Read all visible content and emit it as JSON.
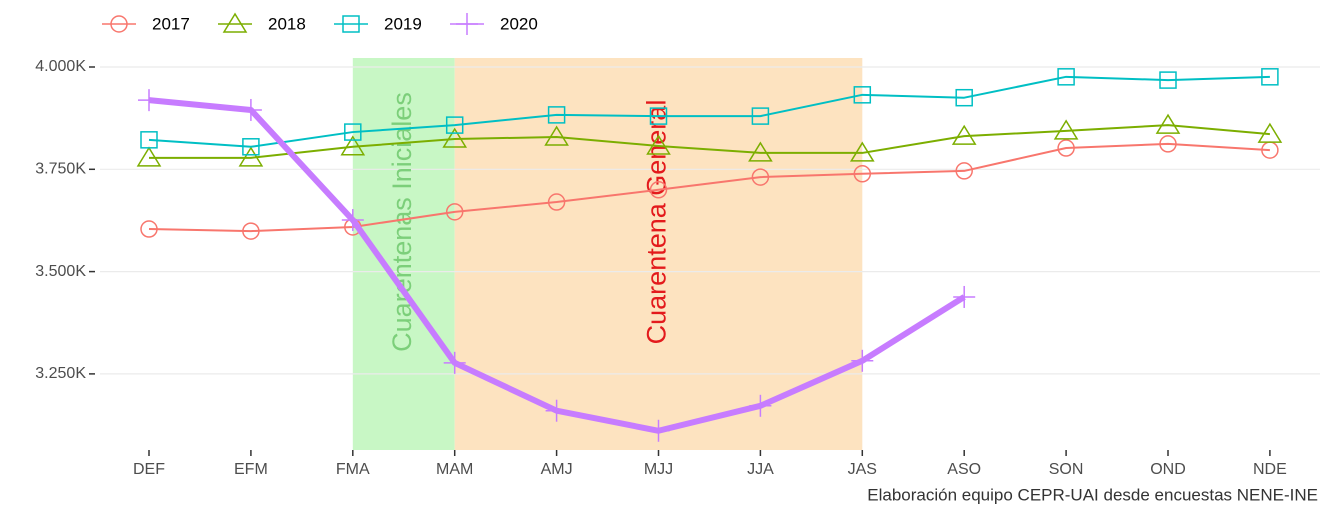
{
  "chart_data": {
    "type": "line",
    "caption": "Elaboración equipo CEPR-UAI desde encuestas NENE-INE",
    "categories": [
      "DEF",
      "EFM",
      "FMA",
      "MAM",
      "AMJ",
      "MJJ",
      "JJA",
      "JAS",
      "ASO",
      "SON",
      "OND",
      "NDE"
    ],
    "series": [
      {
        "name": "2017",
        "color": "#f8766d",
        "marker": "circle",
        "line_width": 2,
        "values": [
          3604,
          3599,
          3609,
          3646,
          3670,
          3700,
          3731,
          3739,
          3746,
          3802,
          3812,
          3797
        ]
      },
      {
        "name": "2018",
        "color": "#7cae00",
        "marker": "triangle",
        "line_width": 2,
        "values": [
          3778,
          3778,
          3805,
          3824,
          3829,
          3807,
          3790,
          3790,
          3831,
          3844,
          3858,
          3836
        ]
      },
      {
        "name": "2019",
        "color": "#00bfc4",
        "marker": "square",
        "line_width": 2,
        "values": [
          3822,
          3805,
          3841,
          3858,
          3883,
          3880,
          3880,
          3932,
          3925,
          3976,
          3968,
          3976
        ]
      },
      {
        "name": "2020",
        "color": "#c77cff",
        "marker": "plus",
        "line_width": 6,
        "values": [
          3919,
          3895,
          3626,
          3277,
          3160,
          3111,
          3172,
          3282,
          3438,
          null,
          null,
          null
        ]
      }
    ],
    "ylim": [
      3064,
      4022
    ],
    "yticks": [
      {
        "value": 3250,
        "label": "3.250K"
      },
      {
        "value": 3500,
        "label": "3.500K"
      },
      {
        "value": 3750,
        "label": "3.750K"
      },
      {
        "value": 4000,
        "label": "4.000K"
      }
    ],
    "grid": true,
    "legend": "top-left",
    "shaded_regions": [
      {
        "label": "Cuarentenas Iniciales",
        "from": "FMA",
        "to": "MAM",
        "fill": "#c8f7c5",
        "text_color": "#7ccf7a"
      },
      {
        "label": "Cuarentena General",
        "from": "MAM",
        "to": "JAS",
        "fill": "#fde3c0",
        "text_color": "#e31a1c"
      }
    ]
  }
}
